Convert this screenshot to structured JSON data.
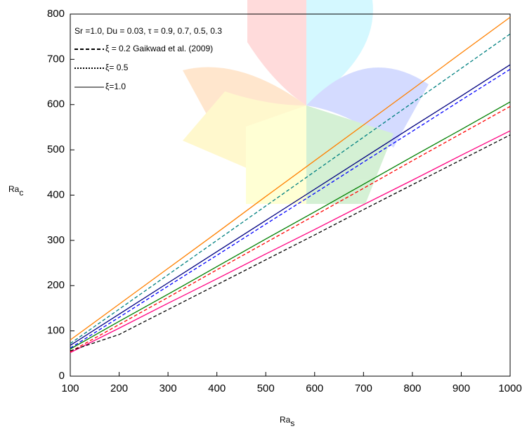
{
  "chart_data": {
    "type": "line",
    "annotation": "Sr =1.0, Du = 0.03, τ  = 0.9, 0.7, 0.5, 0.3",
    "x_label": {
      "text": "Ra",
      "sub": "s"
    },
    "y_label": {
      "text": "Ra",
      "sub": "c"
    },
    "legend_items": [
      {
        "label": "ξ = 0.2 Gaikwad et al. (2009)",
        "dash": "dashed"
      },
      {
        "label": "ξ= 0.5",
        "dash": "dotted"
      },
      {
        "label": "ξ=1.0",
        "dash": "solid"
      }
    ],
    "x": [
      100,
      200,
      300,
      400,
      500,
      600,
      700,
      800,
      900,
      1000
    ],
    "series": [
      {
        "color": "#ff8000",
        "dash": "solid",
        "values": [
          80,
          159,
          238,
          317,
          397,
          476,
          555,
          634,
          714,
          793
        ]
      },
      {
        "color": "#008080",
        "dash": "dashed",
        "values": [
          72,
          148,
          224,
          300,
          376,
          452,
          528,
          604,
          680,
          756
        ]
      },
      {
        "color": "#000080",
        "dash": "solid",
        "values": [
          68,
          137,
          206,
          275,
          344,
          413,
          482,
          551,
          619,
          688
        ]
      },
      {
        "color": "#0000ff",
        "dash": "dashed",
        "values": [
          62,
          130,
          199,
          267,
          336,
          404,
          473,
          541,
          610,
          678
        ]
      },
      {
        "color": "#008000",
        "dash": "solid",
        "values": [
          60,
          121,
          181,
          242,
          303,
          363,
          424,
          485,
          545,
          606
        ]
      },
      {
        "color": "#ff0000",
        "dash": "dashed",
        "values": [
          54,
          114,
          174,
          235,
          295,
          355,
          415,
          476,
          536,
          596
        ]
      },
      {
        "color": "#ff0080",
        "dash": "solid",
        "values": [
          52,
          106,
          161,
          215,
          270,
          324,
          379,
          433,
          488,
          542
        ]
      },
      {
        "color": "#000000",
        "dash": "dashed",
        "values": [
          56,
          92,
          147,
          202,
          257,
          312,
          368,
          423,
          478,
          533
        ]
      }
    ],
    "xlim": [
      100,
      1000
    ],
    "ylim": [
      0,
      800
    ],
    "xticks": [
      100,
      200,
      300,
      400,
      500,
      600,
      700,
      800,
      900,
      1000
    ],
    "yticks": [
      0,
      100,
      200,
      300,
      400,
      500,
      600,
      700,
      800
    ]
  }
}
